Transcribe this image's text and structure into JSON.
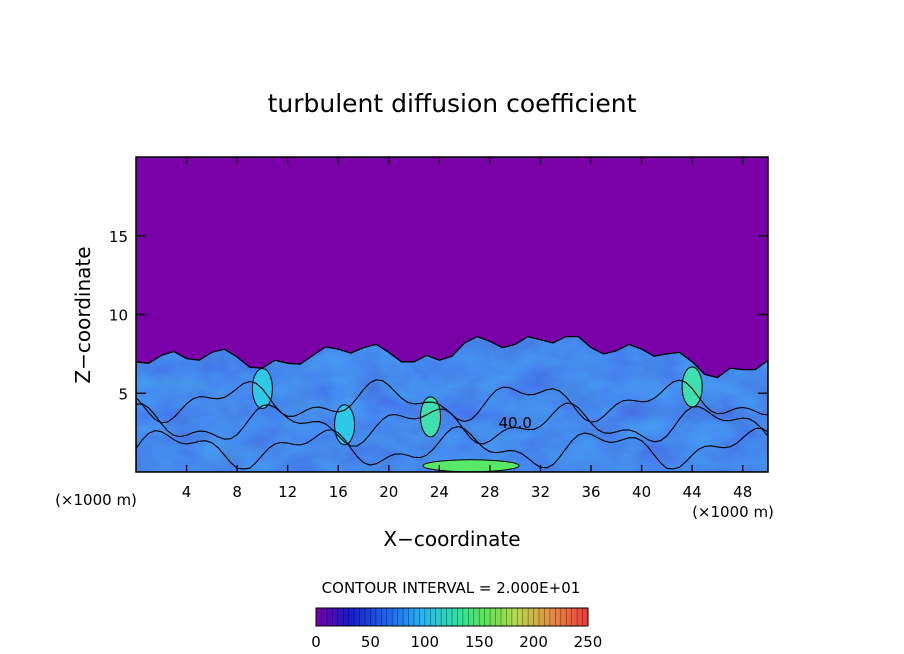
{
  "chart_data": {
    "type": "heatmap",
    "title": "turbulent diffusion coefficient",
    "xlabel": "X−coordinate",
    "ylabel": "Z−coordinate",
    "x_unit_label": "(×1000 m)",
    "z_unit_label": "(×1000 m)",
    "xlim": [
      0,
      50
    ],
    "ylim": [
      0,
      20
    ],
    "x_ticks": [
      4,
      8,
      12,
      16,
      20,
      24,
      28,
      32,
      36,
      40,
      44,
      48
    ],
    "y_ticks": [
      5,
      10,
      15
    ],
    "contour_interval_text": "CONTOUR INTERVAL = 2.000E+01",
    "contour_label": "40.0",
    "contour_label_position": {
      "x": 30,
      "z": 2.8
    },
    "colorbar": {
      "min": 0,
      "max": 250,
      "ticks": [
        0,
        50,
        100,
        150,
        200,
        250
      ]
    },
    "background_value": 0,
    "turbulent_layer_top": [
      {
        "x": 0,
        "z": 7.0
      },
      {
        "x": 2,
        "z": 7.4
      },
      {
        "x": 4,
        "z": 7.2
      },
      {
        "x": 6,
        "z": 7.6
      },
      {
        "x": 8,
        "z": 7.3
      },
      {
        "x": 10,
        "z": 6.6
      },
      {
        "x": 12,
        "z": 6.9
      },
      {
        "x": 14,
        "z": 7.4
      },
      {
        "x": 16,
        "z": 7.8
      },
      {
        "x": 18,
        "z": 7.9
      },
      {
        "x": 20,
        "z": 7.6
      },
      {
        "x": 22,
        "z": 7.0
      },
      {
        "x": 24,
        "z": 7.1
      },
      {
        "x": 26,
        "z": 8.2
      },
      {
        "x": 28,
        "z": 8.3
      },
      {
        "x": 30,
        "z": 8.1
      },
      {
        "x": 32,
        "z": 8.4
      },
      {
        "x": 34,
        "z": 8.6
      },
      {
        "x": 36,
        "z": 7.9
      },
      {
        "x": 38,
        "z": 7.7
      },
      {
        "x": 40,
        "z": 7.8
      },
      {
        "x": 42,
        "z": 7.5
      },
      {
        "x": 44,
        "z": 7.0
      },
      {
        "x": 46,
        "z": 6.0
      },
      {
        "x": 48,
        "z": 6.5
      },
      {
        "x": 50,
        "z": 7.1
      }
    ],
    "high_value_features": [
      {
        "x": 10,
        "z": 5.3,
        "value": 120
      },
      {
        "x": 16.5,
        "z": 3.0,
        "value": 110
      },
      {
        "x": 23.3,
        "z": 3.5,
        "value": 130
      },
      {
        "x": 26.5,
        "z": 0.4,
        "value": 150
      },
      {
        "x": 44,
        "z": 5.4,
        "value": 140
      }
    ]
  }
}
